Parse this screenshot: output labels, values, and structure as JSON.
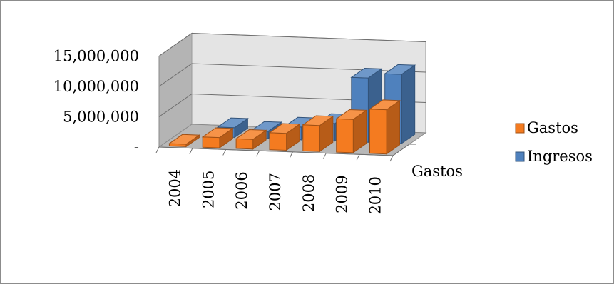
{
  "chart_data": {
    "type": "bar",
    "style": "3d-clustered-column",
    "categories": [
      "2004",
      "2005",
      "2006",
      "2007",
      "2008",
      "2009",
      "2010"
    ],
    "series": [
      {
        "name": "Gastos",
        "color": "#f47b20",
        "values": [
          400000,
          1700000,
          1600000,
          2800000,
          4300000,
          5500000,
          7300000
        ]
      },
      {
        "name": "Ingresos",
        "color": "#4f81bd",
        "values": [
          0,
          1600000,
          1200000,
          2100000,
          2900000,
          10600000,
          11400000
        ]
      }
    ],
    "y_ticks": [
      {
        "value": 0,
        "label": "-"
      },
      {
        "value": 5000000,
        "label": "5,000,000"
      },
      {
        "value": 10000000,
        "label": "10,000,000"
      },
      {
        "value": 15000000,
        "label": "15,000,000"
      }
    ],
    "ylim": [
      0,
      15000000
    ],
    "depth_axis_label": "Gastos",
    "legend": [
      "Gastos",
      "Ingresos"
    ],
    "legend_position": "right",
    "grid": true
  }
}
